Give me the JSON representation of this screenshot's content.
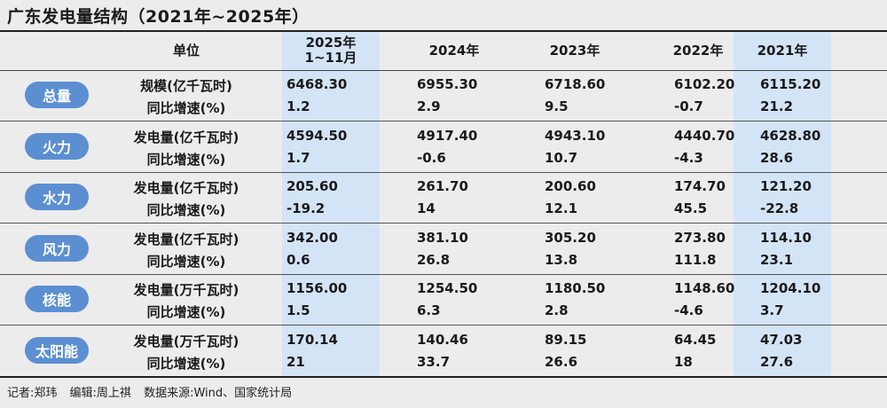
{
  "title": "广东发电量结构（2021年~2025年）",
  "header": {
    "unit_label": "单位",
    "years": [
      "2025年\n1~11月",
      "2024年",
      "2023年",
      "2022年",
      "2021年"
    ]
  },
  "groups": [
    {
      "name": "总量",
      "rows": [
        {
          "label": "规模(亿千瓦时)",
          "values": [
            "6468.30",
            "6955.30",
            "6718.60",
            "6102.20",
            "6115.20"
          ]
        },
        {
          "label": "同比增速(%)",
          "values": [
            "1.2",
            "2.9",
            "9.5",
            "-0.7",
            "21.2"
          ]
        }
      ]
    },
    {
      "name": "火力",
      "rows": [
        {
          "label": "发电量(亿千瓦时)",
          "values": [
            "4594.50",
            "4917.40",
            "4943.10",
            "4440.70",
            "4628.80"
          ]
        },
        {
          "label": "同比增速(%)",
          "values": [
            "1.7",
            "-0.6",
            "10.7",
            "-4.3",
            "28.6"
          ]
        }
      ]
    },
    {
      "name": "水力",
      "rows": [
        {
          "label": "发电量(亿千瓦时)",
          "values": [
            "205.60",
            "261.70",
            "200.60",
            "174.70",
            "121.20"
          ]
        },
        {
          "label": "同比增速(%)",
          "values": [
            "-19.2",
            "14",
            "12.1",
            "45.5",
            "-22.8"
          ]
        }
      ]
    },
    {
      "name": "风力",
      "rows": [
        {
          "label": "发电量(亿千瓦时)",
          "values": [
            "342.00",
            "381.10",
            "305.20",
            "273.80",
            "114.10"
          ]
        },
        {
          "label": "同比增速(%)",
          "values": [
            "0.6",
            "26.8",
            "13.8",
            "111.8",
            "23.1"
          ]
        }
      ]
    },
    {
      "name": "核能",
      "rows": [
        {
          "label": "发电量(万千瓦时)",
          "values": [
            "1156.00",
            "1254.50",
            "1180.50",
            "1148.60",
            "1204.10"
          ]
        },
        {
          "label": "同比增速(%)",
          "values": [
            "1.5",
            "6.3",
            "2.8",
            "-4.6",
            "3.7"
          ]
        }
      ]
    },
    {
      "name": "太阳能",
      "rows": [
        {
          "label": "发电量(万千瓦时)",
          "values": [
            "170.14",
            "140.46",
            "89.15",
            "64.45",
            "47.03"
          ]
        },
        {
          "label": "同比增速(%)",
          "values": [
            "21",
            "33.7",
            "26.6",
            "18",
            "27.6"
          ]
        }
      ]
    }
  ],
  "footer": {
    "reporter": "记者:郑玮",
    "editor": "编辑:周上祺",
    "source": "数据来源:Wind、国家统计局"
  }
}
